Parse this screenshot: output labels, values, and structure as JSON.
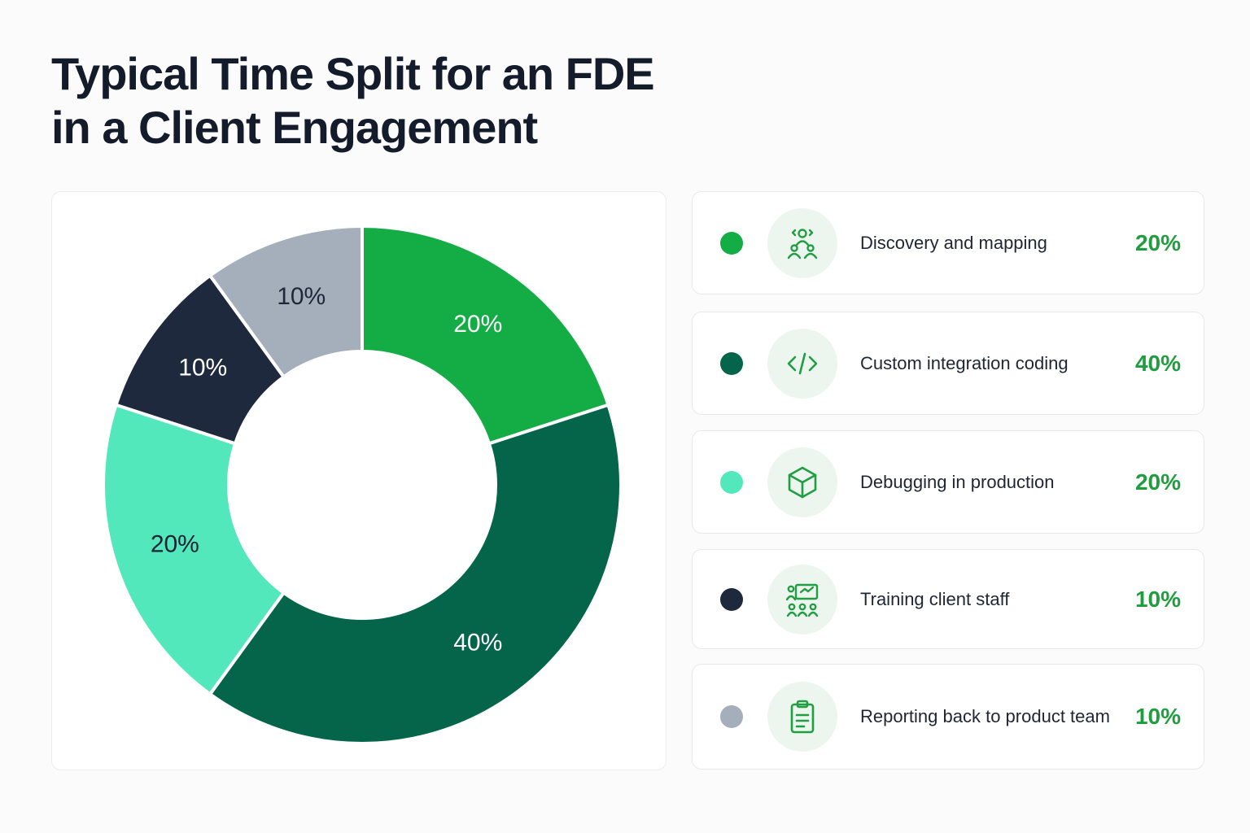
{
  "title": {
    "line1": "Typical Time Split for an FDE",
    "line2": "in a Client Engagement"
  },
  "chart_data": {
    "type": "donut",
    "slices": [
      {
        "label": "Discovery and mapping",
        "value": 20,
        "value_label": "20%",
        "color": "#14ad45",
        "text_color": "#ffffff"
      },
      {
        "label": "Custom integration coding",
        "value": 40,
        "value_label": "40%",
        "color": "#05654a",
        "text_color": "#ffffff"
      },
      {
        "label": "Debugging in production",
        "value": 20,
        "value_label": "20%",
        "color": "#52e8bc",
        "text_color": "#152033"
      },
      {
        "label": "Training client staff",
        "value": 10,
        "value_label": "10%",
        "color": "#1e293d",
        "text_color": "#ffffff"
      },
      {
        "label": "Reporting back to product team",
        "value": 10,
        "value_label": "10%",
        "color": "#a5afbb",
        "text_color": "#1e2838"
      }
    ]
  },
  "legend": {
    "items": [
      {
        "label": "Discovery and mapping",
        "value": "20%",
        "icon": "team-icon"
      },
      {
        "label": "Custom integration coding",
        "value": "40%",
        "icon": "code-icon"
      },
      {
        "label": "Debugging in production",
        "value": "20%",
        "icon": "cube-icon"
      },
      {
        "label": "Training client staff",
        "value": "10%",
        "icon": "presentation-icon"
      },
      {
        "label": "Reporting back to product team",
        "value": "10%",
        "icon": "clipboard-icon"
      }
    ]
  },
  "colors": {
    "accent": "#1e9e3c",
    "icon_stroke": "#1f9e42",
    "icon_bg": "#edf5ef"
  }
}
